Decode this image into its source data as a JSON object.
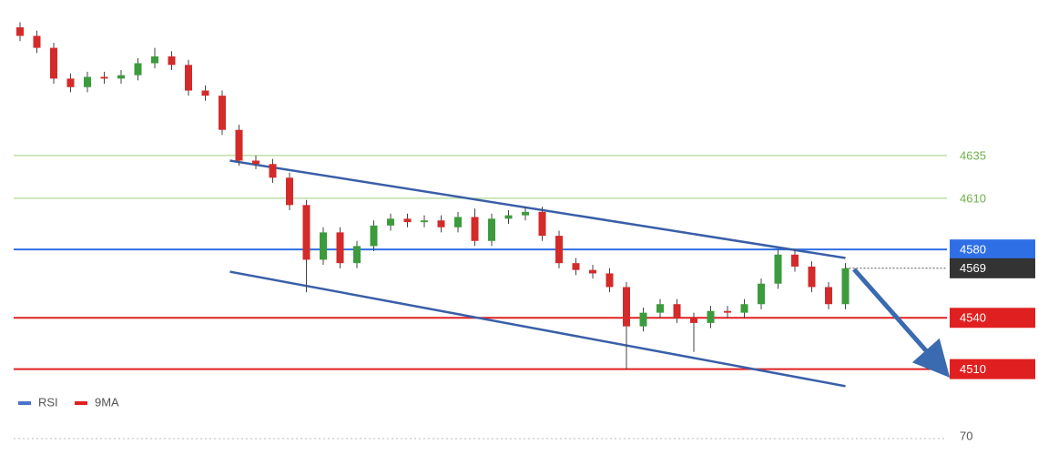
{
  "chart_data": {
    "type": "candlestick",
    "up_color": "#3c9b3c",
    "down_color": "#d42a2a",
    "ylim": [
      4497,
      4726
    ],
    "open": [
      4710,
      4705,
      4698,
      4680,
      4675,
      4681,
      4680,
      4682,
      4689,
      4693,
      4688,
      4673,
      4670,
      4650,
      4632,
      4630,
      4622,
      4606,
      4574,
      4590,
      4572,
      4582,
      4594,
      4598,
      4596,
      4597,
      4593,
      4599,
      4585,
      4598,
      4600,
      4602,
      4588,
      4572,
      4568,
      4566,
      4558,
      4535,
      4543,
      4548,
      4540,
      4537,
      4544,
      4543,
      4548,
      4560,
      4577,
      4570,
      4558,
      4548
    ],
    "high": [
      4713,
      4708,
      4701,
      4683,
      4684,
      4684,
      4685,
      4692,
      4698,
      4696,
      4691,
      4676,
      4673,
      4653,
      4635,
      4633,
      4625,
      4609,
      4593,
      4593,
      4585,
      4597,
      4601,
      4601,
      4600,
      4600,
      4602,
      4604,
      4601,
      4603,
      4605,
      4605,
      4591,
      4575,
      4571,
      4569,
      4561,
      4546,
      4551,
      4551,
      4543,
      4547,
      4547,
      4551,
      4563,
      4580,
      4580,
      4573,
      4561,
      4572
    ],
    "low": [
      4702,
      4695,
      4677,
      4672,
      4672,
      4677,
      4677,
      4679,
      4686,
      4685,
      4670,
      4667,
      4647,
      4629,
      4627,
      4619,
      4603,
      4555,
      4571,
      4569,
      4569,
      4579,
      4591,
      4593,
      4593,
      4590,
      4590,
      4582,
      4582,
      4595,
      4597,
      4585,
      4569,
      4565,
      4563,
      4555,
      4510,
      4532,
      4540,
      4537,
      4520,
      4534,
      4540,
      4540,
      4545,
      4557,
      4567,
      4555,
      4545,
      4545
    ],
    "close": [
      4705,
      4698,
      4680,
      4675,
      4681,
      4680,
      4682,
      4689,
      4693,
      4688,
      4673,
      4670,
      4650,
      4632,
      4630,
      4622,
      4606,
      4574,
      4590,
      4572,
      4582,
      4594,
      4598,
      4596,
      4597,
      4593,
      4599,
      4585,
      4598,
      4600,
      4602,
      4588,
      4572,
      4568,
      4566,
      4558,
      4535,
      4543,
      4548,
      4540,
      4537,
      4544,
      4543,
      4548,
      4560,
      4577,
      4570,
      4558,
      4548,
      4569
    ],
    "levels": [
      {
        "value": 4635,
        "color": "#9ccf7c",
        "style": "text"
      },
      {
        "value": 4610,
        "color": "#9ccf7c",
        "style": "text"
      },
      {
        "value": 4580,
        "color": "#2f6fe6",
        "style": "box"
      },
      {
        "value": 4540,
        "color": "#e02020",
        "style": "box"
      },
      {
        "value": 4510,
        "color": "#e02020",
        "style": "box"
      }
    ],
    "last_price": {
      "value": 4569,
      "color": "#333333"
    },
    "trendlines": [
      {
        "x": [
          13,
          49
        ],
        "y": [
          4632,
          4575
        ],
        "color": "#3a5fa8"
      },
      {
        "x": [
          13,
          49
        ],
        "y": [
          4567,
          4500
        ],
        "color": "#3a5fa8"
      }
    ],
    "legend": [
      {
        "name": "RSI",
        "color": "#4a74c9"
      },
      {
        "name": "9MA",
        "color": "#e02020"
      }
    ],
    "rsi_yticks": [
      70
    ]
  }
}
